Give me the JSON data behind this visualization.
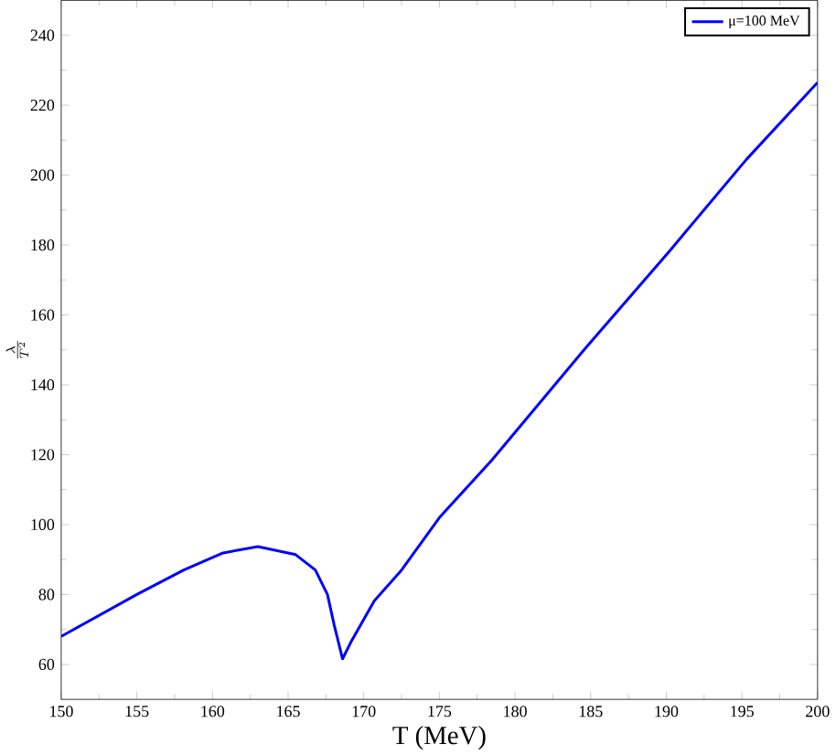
{
  "chart_data": {
    "type": "line",
    "xlabel": "T (MeV)",
    "ylabel": "\\frac{\\lambda}{T^2}",
    "xlim": [
      150,
      200
    ],
    "ylim": [
      50,
      250
    ],
    "xticks": [
      150,
      155,
      160,
      165,
      170,
      175,
      180,
      185,
      190,
      195,
      200
    ],
    "yticks": [
      60,
      80,
      100,
      120,
      140,
      160,
      180,
      200,
      220,
      240
    ],
    "grid": false,
    "legend": "top right",
    "marker": "none",
    "line_style": "solid",
    "series": [
      {
        "name": "μ=100 MeV",
        "color": "#0000ff",
        "x": [
          150,
          155,
          158.1,
          160.7,
          163,
          165.5,
          166.8,
          167.6,
          168.05,
          168.6,
          169.2,
          170.7,
          172.5,
          175,
          178.5,
          184.6,
          190.2,
          195.3,
          200
        ],
        "values": [
          68,
          80,
          87,
          91.9,
          93.7,
          91.4,
          87,
          80,
          71.2,
          61.6,
          66.8,
          78.2,
          87,
          102,
          118.6,
          150.2,
          178.2,
          204.5,
          226.5
        ]
      }
    ]
  }
}
